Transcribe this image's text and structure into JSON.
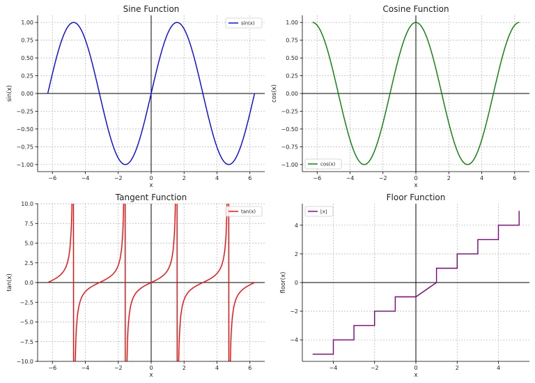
{
  "chart_data": [
    {
      "id": "sin",
      "type": "line",
      "title": "Sine Function",
      "xlabel": "x",
      "ylabel": "sin(x)",
      "xlim": [
        -6.9,
        6.9
      ],
      "ylim": [
        -1.1,
        1.1
      ],
      "xticks": [
        -6,
        -4,
        -2,
        0,
        2,
        4,
        6
      ],
      "xtick_labels": [
        "−6",
        "−4",
        "−2",
        "0",
        "2",
        "4",
        "6"
      ],
      "yticks": [
        -1,
        -0.75,
        -0.5,
        -0.25,
        0,
        0.25,
        0.5,
        0.75,
        1
      ],
      "ytick_labels": [
        "−1.00",
        "−0.75",
        "−0.50",
        "−0.25",
        "0.00",
        "0.25",
        "0.50",
        "0.75",
        "1.00"
      ],
      "grid": true,
      "legend": "top-right",
      "series": [
        {
          "name": "sin(x)",
          "color": "#0000ff",
          "x": [
            -6.283,
            -5.498,
            -4.712,
            -3.927,
            -3.142,
            -2.356,
            -1.571,
            -0.785,
            0,
            0.785,
            1.571,
            2.356,
            3.142,
            3.927,
            4.712,
            5.498,
            6.283
          ],
          "y": [
            0,
            0.707,
            1,
            0.707,
            0,
            -0.707,
            -1,
            -0.707,
            0,
            0.707,
            1,
            0.707,
            0,
            -0.707,
            -1,
            -0.707,
            0
          ]
        }
      ]
    },
    {
      "id": "cos",
      "type": "line",
      "title": "Cosine Function",
      "xlabel": "x",
      "ylabel": "cos(x)",
      "xlim": [
        -6.9,
        6.9
      ],
      "ylim": [
        -1.1,
        1.1
      ],
      "xticks": [
        -6,
        -4,
        -2,
        0,
        2,
        4,
        6
      ],
      "xtick_labels": [
        "−6",
        "−4",
        "−2",
        "0",
        "2",
        "4",
        "6"
      ],
      "yticks": [
        -1,
        -0.75,
        -0.5,
        -0.25,
        0,
        0.25,
        0.5,
        0.75,
        1
      ],
      "ytick_labels": [
        "−1.00",
        "−0.75",
        "−0.50",
        "−0.25",
        "0.00",
        "0.25",
        "0.50",
        "0.75",
        "1.00"
      ],
      "grid": true,
      "legend": "bottom-left",
      "series": [
        {
          "name": "cos(x)",
          "color": "#008000",
          "x": [
            -6.283,
            -5.498,
            -4.712,
            -3.927,
            -3.142,
            -2.356,
            -1.571,
            -0.785,
            0,
            0.785,
            1.571,
            2.356,
            3.142,
            3.927,
            4.712,
            5.498,
            6.283
          ],
          "y": [
            1,
            0.707,
            0,
            -0.707,
            -1,
            -0.707,
            0,
            0.707,
            1,
            0.707,
            0,
            -0.707,
            -1,
            -0.707,
            0,
            0.707,
            1
          ]
        }
      ]
    },
    {
      "id": "tan",
      "type": "line",
      "title": "Tangent Function",
      "xlabel": "x",
      "ylabel": "tan(x)",
      "xlim": [
        -6.9,
        6.9
      ],
      "ylim": [
        -10,
        10
      ],
      "xticks": [
        -6,
        -4,
        -2,
        0,
        2,
        4,
        6
      ],
      "xtick_labels": [
        "−6",
        "−4",
        "−2",
        "0",
        "2",
        "4",
        "6"
      ],
      "yticks": [
        -10,
        -7.5,
        -5,
        -2.5,
        0,
        2.5,
        5,
        7.5,
        10
      ],
      "ytick_labels": [
        "−10.0",
        "−7.5",
        "−5.0",
        "−2.5",
        "0.0",
        "2.5",
        "5.0",
        "7.5",
        "10.0"
      ],
      "grid": true,
      "legend": "top-right",
      "series": [
        {
          "name": "tan(x)",
          "color": "#ff0000",
          "x": [
            -6.283,
            -5.498,
            -5.105,
            -4.909,
            -4.812,
            -4.612,
            -4.516,
            -4.32,
            -3.927,
            -3.142,
            -2.356,
            -1.963,
            -1.767,
            -1.67,
            -1.471,
            -1.374,
            -1.178,
            -0.785,
            0,
            0.785,
            1.178,
            1.374,
            1.471,
            1.67,
            1.767,
            1.963,
            2.356,
            3.142,
            3.927,
            4.32,
            4.516,
            4.612,
            4.812,
            4.909,
            5.105,
            5.498,
            6.283
          ],
          "y": [
            0,
            1,
            2.41,
            5.03,
            10,
            -10,
            -5.03,
            -2.41,
            -1,
            0,
            1,
            2.41,
            5.03,
            10,
            -10,
            -5.03,
            -2.41,
            -1,
            0,
            1,
            2.41,
            5.03,
            10,
            -10,
            -5.03,
            -2.41,
            -1,
            0,
            1,
            2.41,
            5.03,
            10,
            -10,
            -5.03,
            -2.41,
            -1,
            0
          ]
        }
      ]
    },
    {
      "id": "floor",
      "type": "line",
      "title": "Floor Function",
      "xlabel": "x",
      "ylabel": "floor(x)",
      "xlim": [
        -5.5,
        5.5
      ],
      "ylim": [
        -5.5,
        5.5
      ],
      "xticks": [
        -4,
        -2,
        0,
        2,
        4
      ],
      "xtick_labels": [
        "−4",
        "−2",
        "0",
        "2",
        "4"
      ],
      "yticks": [
        -4,
        -2,
        0,
        2,
        4
      ],
      "ytick_labels": [
        "−4",
        "−2",
        "0",
        "2",
        "4"
      ],
      "grid": true,
      "legend": "top-left",
      "series": [
        {
          "name": "⌊x⌋",
          "color": "#800080",
          "x": [
            -5,
            -4,
            -4,
            -3,
            -3,
            -2,
            -2,
            -1,
            -1,
            0,
            1,
            1,
            2,
            2,
            3,
            3,
            4,
            4,
            5,
            5
          ],
          "y": [
            -5,
            -5,
            -4,
            -4,
            -3,
            -3,
            -2,
            -2,
            -1,
            -1,
            0,
            1,
            1,
            2,
            2,
            3,
            3,
            4,
            4,
            5
          ]
        }
      ]
    }
  ]
}
